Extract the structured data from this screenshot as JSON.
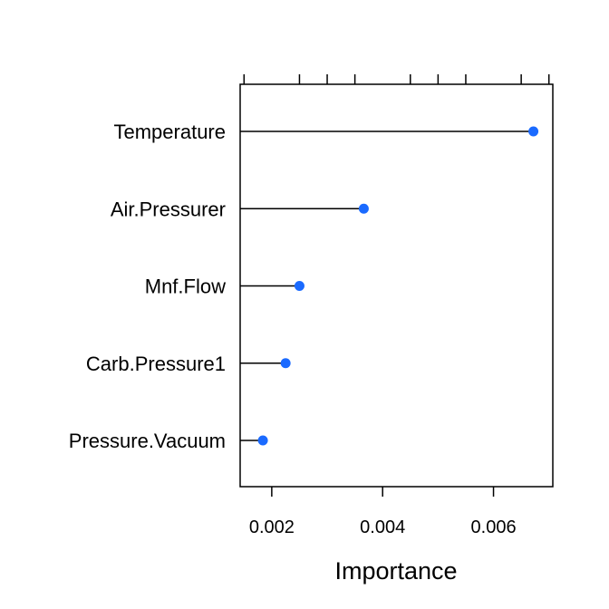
{
  "chart_data": {
    "type": "dot",
    "categories": [
      "Temperature",
      "Air.Pressurer",
      "Mnf.Flow",
      "Carb.Pressure1",
      "Pressure.Vacuum"
    ],
    "values": [
      0.00672,
      0.00366,
      0.0025,
      0.00225,
      0.00184
    ],
    "xlabel": "Importance",
    "ylabel": "",
    "x_tick_labels": [
      "0.002",
      "0.004",
      "0.006"
    ],
    "x_ticks": [
      0.0015,
      0.002,
      0.0025,
      0.003,
      0.0035,
      0.004,
      0.0045,
      0.005,
      0.0055,
      0.006,
      0.0065,
      0.007
    ],
    "xlim": [
      0.00143,
      0.00707
    ],
    "grid": false,
    "colors": {
      "point": "#1a6aff",
      "line": "#000000",
      "frame": "#000000"
    }
  }
}
